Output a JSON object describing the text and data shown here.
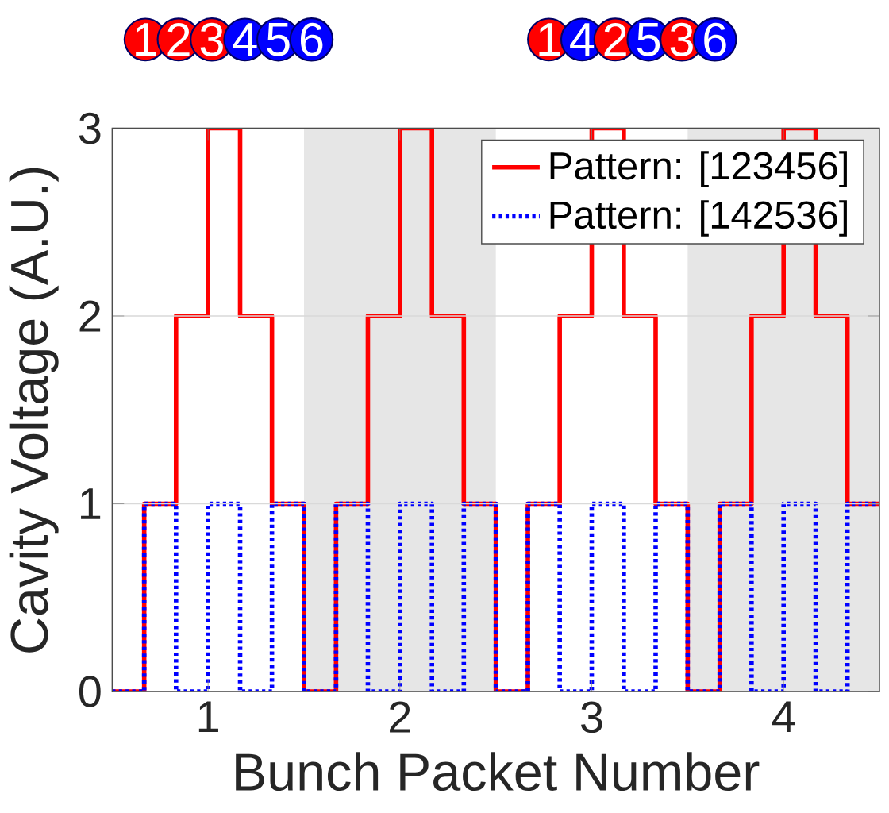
{
  "chart_data": {
    "type": "step",
    "xlabel": "Bunch Packet Number",
    "ylabel": "Cavity Voltage (A.U.)",
    "annotations": [
      "1",
      "2",
      "3",
      "4",
      "5",
      "6",
      "1",
      "4",
      "2",
      "5",
      "3",
      "6"
    ],
    "x": [
      0.5,
      0.667,
      0.833,
      1,
      1.167,
      1.333,
      1.5,
      1.667,
      1.833,
      2,
      2.167,
      2.333,
      2.5,
      2.667,
      2.833,
      3,
      3.167,
      3.333,
      3.5,
      3.667,
      3.833,
      4,
      4.167,
      4.333,
      4.5
    ],
    "series": [
      {
        "name": "Pattern: [123456]",
        "color": "#ff0000",
        "line_style": "solid",
        "values": [
          0,
          1,
          2,
          3,
          2,
          1,
          0,
          1,
          2,
          3,
          2,
          1,
          0,
          1,
          2,
          3,
          2,
          1,
          0,
          1,
          2,
          3,
          2,
          1,
          1
        ]
      },
      {
        "name": "Pattern: [142536]",
        "color": "#0000ff",
        "line_style": "dotted",
        "values": [
          0,
          1,
          0,
          1,
          0,
          1,
          0,
          1,
          0,
          1,
          0,
          1,
          0,
          1,
          0,
          1,
          0,
          1,
          0,
          1,
          0,
          1,
          0,
          1,
          1
        ]
      }
    ],
    "bands": [
      {
        "axis": "x",
        "from": 1.5,
        "to": 2.5,
        "color": "#e6e6e6"
      },
      {
        "axis": "x",
        "from": 3.5,
        "to": 4.5,
        "color": "#e6e6e6"
      }
    ],
    "xlim": [
      0.5,
      4.5
    ],
    "ylim": [
      0,
      3
    ],
    "xticks": [
      1,
      2,
      3,
      4
    ],
    "yticks": [
      0,
      1,
      2,
      3
    ],
    "grid": "y",
    "legend": "top right"
  }
}
